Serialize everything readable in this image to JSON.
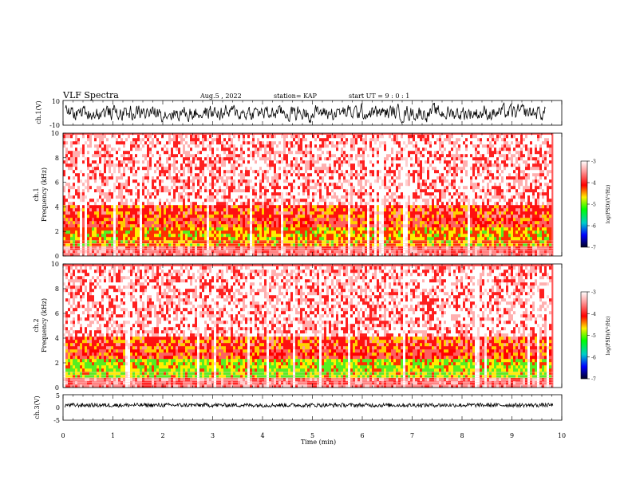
{
  "header": {
    "title": "VLF Spectra",
    "date": "Aug.5  , 2022",
    "station": "station= KAP",
    "start": "start  UT  =   9  : 0  : 1"
  },
  "chart_data": [
    {
      "type": "line",
      "panel": "ch1-waveform",
      "ylabel": "ch.1(V)",
      "ylim": [
        -10,
        10
      ],
      "yticks": [
        "10",
        "-10"
      ],
      "xlim": [
        0,
        10
      ],
      "color": "#000000"
    },
    {
      "type": "heatmap",
      "panel": "ch1-spectrogram",
      "ylabel_line1": "ch.1",
      "ylabel_line2": "Frequency  (kHz)",
      "ylim": [
        0,
        10
      ],
      "yticks": [
        "0",
        "2",
        "4",
        "6",
        "8",
        "10"
      ],
      "xlim": [
        0,
        10
      ],
      "data_end_min": 9.83,
      "colorbar": {
        "label": "log(PSD)(V²/Hz)",
        "range": [
          -7,
          -3
        ],
        "ticks": [
          "-3",
          "-4",
          "-5",
          "-6",
          "-7"
        ]
      }
    },
    {
      "type": "heatmap",
      "panel": "ch2-spectrogram",
      "ylabel_line1": "ch.2",
      "ylabel_line2": "Frequency  (kHz)",
      "ylim": [
        0,
        10
      ],
      "yticks": [
        "0",
        "2",
        "4",
        "6",
        "8",
        "10"
      ],
      "xlim": [
        0,
        10
      ],
      "data_end_min": 9.83,
      "colorbar": {
        "label": "log(PSD)(V²/Hz)",
        "range": [
          -7,
          -3
        ],
        "ticks": [
          "-3",
          "-4",
          "-5",
          "-6",
          "-7"
        ]
      }
    },
    {
      "type": "line",
      "panel": "ch3-waveform",
      "ylabel": "ch.3(V)",
      "ylim": [
        -5,
        5
      ],
      "yticks": [
        "5",
        "0",
        "-5"
      ],
      "xlim": [
        0,
        10
      ],
      "data_end_min": 9.83,
      "xlabel": "Time  (min)",
      "xticks": [
        "0",
        "1",
        "2",
        "3",
        "4",
        "5",
        "6",
        "7",
        "8",
        "9",
        "10"
      ],
      "color": "#000000"
    }
  ]
}
